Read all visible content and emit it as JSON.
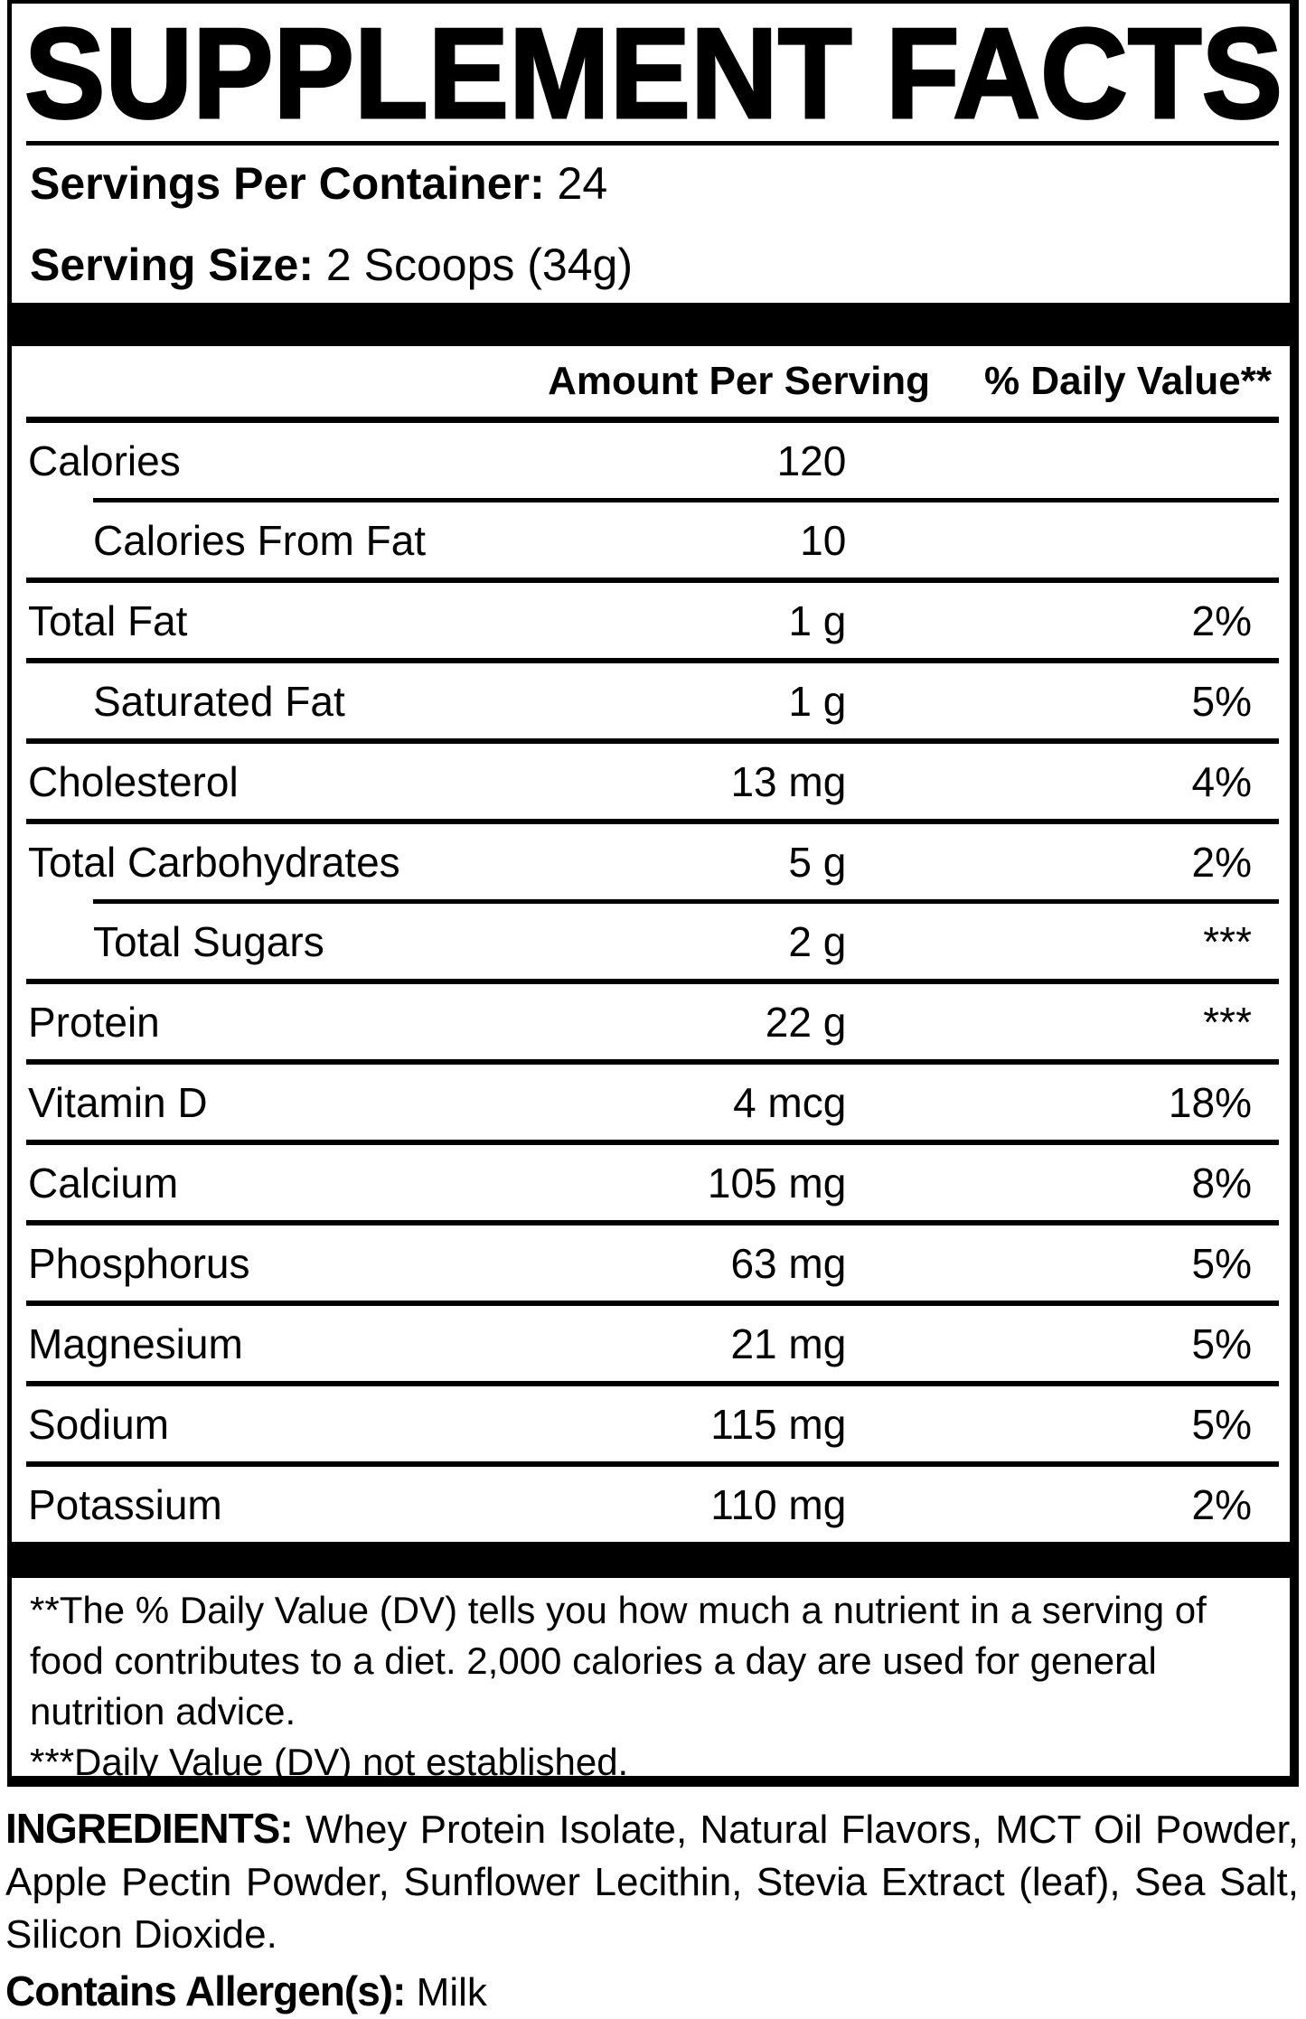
{
  "title": "SUPPLEMENT FACTS",
  "serving": {
    "servings_label": "Servings Per Container:",
    "servings_value": "24",
    "size_label": "Serving Size:",
    "size_value": "2 Scoops (34g)"
  },
  "table": {
    "header": {
      "amount": "Amount Per Serving",
      "dv": "% Daily Value**"
    },
    "rows": [
      {
        "name": "Calories",
        "amount": "120",
        "dv": "",
        "indent": false,
        "sep": "indent"
      },
      {
        "name": "Calories From Fat",
        "amount": "10",
        "dv": "",
        "indent": true,
        "sep": "full"
      },
      {
        "name": "Total Fat",
        "amount": "1 g",
        "dv": "2%",
        "indent": false,
        "sep": "full"
      },
      {
        "name": "Saturated Fat",
        "amount": "1 g",
        "dv": "5%",
        "indent": true,
        "sep": "full"
      },
      {
        "name": "Cholesterol",
        "amount": "13 mg",
        "dv": "4%",
        "indent": false,
        "sep": "full"
      },
      {
        "name": "Total Carbohydrates",
        "amount": "5 g",
        "dv": "2%",
        "indent": false,
        "sep": "indent"
      },
      {
        "name": "Total Sugars",
        "amount": "2 g",
        "dv": "***",
        "indent": true,
        "sep": "full"
      },
      {
        "name": "Protein",
        "amount": "22 g",
        "dv": "***",
        "indent": false,
        "sep": "full"
      },
      {
        "name": "Vitamin D",
        "amount": "4 mcg",
        "dv": "18%",
        "indent": false,
        "sep": "full"
      },
      {
        "name": "Calcium",
        "amount": "105 mg",
        "dv": "8%",
        "indent": false,
        "sep": "full"
      },
      {
        "name": "Phosphorus",
        "amount": "63 mg",
        "dv": "5%",
        "indent": false,
        "sep": "full"
      },
      {
        "name": "Magnesium",
        "amount": "21 mg",
        "dv": "5%",
        "indent": false,
        "sep": "full"
      },
      {
        "name": "Sodium",
        "amount": "115 mg",
        "dv": "5%",
        "indent": false,
        "sep": "full"
      },
      {
        "name": "Potassium",
        "amount": "110 mg",
        "dv": "2%",
        "indent": false,
        "sep": "none"
      }
    ]
  },
  "footnotes": {
    "dv_note": "**The % Daily Value (DV) tells you how much a nutrient in a serving of food contributes to a diet. 2,000 calories a day are used for general nutrition advice.",
    "not_established_note": "***Daily Value (DV) not established."
  },
  "ingredients": {
    "label": "INGREDIENTS:",
    "text": "Whey Protein Isolate, Natural Flavors, MCT Oil Powder, Apple Pectin Powder, Sunflower Lecithin, Stevia Extract (leaf), Sea Salt, Silicon Dioxide.",
    "allergen_label": "Contains Allergen(s):",
    "allergen_value": "Milk"
  },
  "colors": {
    "ink": "#000000",
    "paper": "#ffffff"
  }
}
